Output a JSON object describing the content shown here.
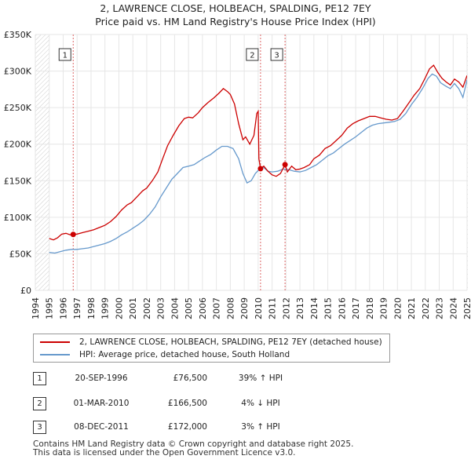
{
  "title": "2, LAWRENCE CLOSE, HOLBEACH, SPALDING, PE12 7EY",
  "subtitle": "Price paid vs. HM Land Registry's House Price Index (HPI)",
  "chart_data": {
    "type": "line",
    "xlim": [
      1994,
      2025
    ],
    "ylim": [
      0,
      350000
    ],
    "y_ticks": [
      {
        "value": 0,
        "label": "£0"
      },
      {
        "value": 50000,
        "label": "£50K"
      },
      {
        "value": 100000,
        "label": "£100K"
      },
      {
        "value": 150000,
        "label": "£150K"
      },
      {
        "value": 200000,
        "label": "£200K"
      },
      {
        "value": 250000,
        "label": "£250K"
      },
      {
        "value": 300000,
        "label": "£300K"
      },
      {
        "value": 350000,
        "label": "£350K"
      }
    ],
    "x_ticks": [
      "1994",
      "1995",
      "1996",
      "1997",
      "1998",
      "1999",
      "2000",
      "2001",
      "2002",
      "2003",
      "2004",
      "2005",
      "2006",
      "2007",
      "2008",
      "2009",
      "2010",
      "2011",
      "2012",
      "2013",
      "2014",
      "2015",
      "2016",
      "2017",
      "2018",
      "2019",
      "2020",
      "2021",
      "2022",
      "2023",
      "2024",
      "2025"
    ],
    "hatched_regions": [
      [
        1994,
        1995
      ],
      [
        2025,
        2025.2
      ]
    ],
    "series": [
      {
        "name": "2, LAWRENCE CLOSE, HOLBEACH, SPALDING, PE12 7EY (detached house)",
        "color": "#cc0000",
        "points": [
          [
            1995.0,
            71000
          ],
          [
            1995.3,
            69000
          ],
          [
            1995.6,
            72000
          ],
          [
            1995.9,
            77000
          ],
          [
            1996.2,
            78000
          ],
          [
            1996.5,
            76000
          ],
          [
            1996.72,
            76500
          ],
          [
            1997.0,
            77000
          ],
          [
            1997.4,
            79000
          ],
          [
            1997.8,
            81000
          ],
          [
            1998.2,
            83000
          ],
          [
            1998.6,
            86000
          ],
          [
            1999.0,
            89000
          ],
          [
            1999.4,
            94000
          ],
          [
            1999.8,
            101000
          ],
          [
            2000.2,
            110000
          ],
          [
            2000.6,
            117000
          ],
          [
            2000.9,
            120000
          ],
          [
            2001.3,
            128000
          ],
          [
            2001.7,
            136000
          ],
          [
            2002.0,
            140000
          ],
          [
            2002.4,
            150000
          ],
          [
            2002.8,
            162000
          ],
          [
            2003.1,
            178000
          ],
          [
            2003.5,
            198000
          ],
          [
            2003.9,
            212000
          ],
          [
            2004.3,
            225000
          ],
          [
            2004.7,
            235000
          ],
          [
            2005.0,
            237000
          ],
          [
            2005.3,
            236000
          ],
          [
            2005.7,
            243000
          ],
          [
            2006.0,
            250000
          ],
          [
            2006.4,
            257000
          ],
          [
            2006.8,
            263000
          ],
          [
            2007.2,
            270000
          ],
          [
            2007.5,
            276000
          ],
          [
            2007.8,
            272000
          ],
          [
            2008.0,
            268000
          ],
          [
            2008.3,
            255000
          ],
          [
            2008.6,
            228000
          ],
          [
            2008.9,
            206000
          ],
          [
            2009.1,
            210000
          ],
          [
            2009.4,
            200000
          ],
          [
            2009.7,
            212000
          ],
          [
            2009.9,
            242000
          ],
          [
            2010.0,
            245000
          ],
          [
            2010.05,
            180000
          ],
          [
            2010.17,
            166500
          ],
          [
            2010.4,
            170000
          ],
          [
            2010.7,
            163000
          ],
          [
            2011.0,
            158000
          ],
          [
            2011.3,
            156000
          ],
          [
            2011.6,
            160000
          ],
          [
            2011.93,
            172000
          ],
          [
            2012.1,
            162000
          ],
          [
            2012.4,
            170000
          ],
          [
            2012.7,
            165000
          ],
          [
            2013.0,
            166000
          ],
          [
            2013.3,
            168000
          ],
          [
            2013.7,
            172000
          ],
          [
            2014.0,
            180000
          ],
          [
            2014.4,
            185000
          ],
          [
            2014.8,
            194000
          ],
          [
            2015.2,
            198000
          ],
          [
            2015.6,
            205000
          ],
          [
            2016.0,
            212000
          ],
          [
            2016.4,
            222000
          ],
          [
            2016.8,
            228000
          ],
          [
            2017.2,
            232000
          ],
          [
            2017.6,
            235000
          ],
          [
            2018.0,
            238000
          ],
          [
            2018.4,
            238000
          ],
          [
            2018.8,
            236000
          ],
          [
            2019.2,
            234000
          ],
          [
            2019.6,
            233000
          ],
          [
            2020.0,
            235000
          ],
          [
            2020.4,
            245000
          ],
          [
            2020.8,
            256000
          ],
          [
            2021.2,
            267000
          ],
          [
            2021.6,
            276000
          ],
          [
            2022.0,
            291000
          ],
          [
            2022.3,
            303000
          ],
          [
            2022.6,
            308000
          ],
          [
            2022.9,
            298000
          ],
          [
            2023.2,
            290000
          ],
          [
            2023.5,
            285000
          ],
          [
            2023.8,
            281000
          ],
          [
            2024.1,
            289000
          ],
          [
            2024.4,
            285000
          ],
          [
            2024.7,
            278000
          ],
          [
            2025.0,
            294000
          ]
        ]
      },
      {
        "name": "HPI: Average price, detached house, South Holland",
        "color": "#6699cc",
        "points": [
          [
            1995.0,
            52000
          ],
          [
            1995.4,
            51000
          ],
          [
            1995.8,
            53000
          ],
          [
            1996.2,
            55000
          ],
          [
            1996.6,
            56000
          ],
          [
            1997.0,
            56000
          ],
          [
            1997.4,
            57000
          ],
          [
            1997.8,
            58000
          ],
          [
            1998.2,
            60000
          ],
          [
            1998.6,
            62000
          ],
          [
            1999.0,
            64000
          ],
          [
            1999.4,
            67000
          ],
          [
            1999.8,
            71000
          ],
          [
            2000.2,
            76000
          ],
          [
            2000.6,
            80000
          ],
          [
            2001.0,
            85000
          ],
          [
            2001.4,
            90000
          ],
          [
            2001.8,
            96000
          ],
          [
            2002.2,
            104000
          ],
          [
            2002.6,
            114000
          ],
          [
            2003.0,
            128000
          ],
          [
            2003.4,
            140000
          ],
          [
            2003.8,
            152000
          ],
          [
            2004.2,
            160000
          ],
          [
            2004.6,
            168000
          ],
          [
            2005.0,
            170000
          ],
          [
            2005.4,
            172000
          ],
          [
            2005.8,
            177000
          ],
          [
            2006.2,
            182000
          ],
          [
            2006.6,
            186000
          ],
          [
            2007.0,
            192000
          ],
          [
            2007.4,
            197000
          ],
          [
            2007.8,
            197000
          ],
          [
            2008.2,
            194000
          ],
          [
            2008.6,
            180000
          ],
          [
            2008.9,
            160000
          ],
          [
            2009.2,
            147000
          ],
          [
            2009.5,
            150000
          ],
          [
            2009.8,
            160000
          ],
          [
            2010.1,
            166000
          ],
          [
            2010.4,
            168000
          ],
          [
            2010.7,
            163000
          ],
          [
            2011.0,
            162000
          ],
          [
            2011.4,
            163000
          ],
          [
            2011.8,
            166000
          ],
          [
            2012.2,
            165000
          ],
          [
            2012.6,
            163000
          ],
          [
            2013.0,
            162000
          ],
          [
            2013.4,
            164000
          ],
          [
            2013.8,
            168000
          ],
          [
            2014.2,
            172000
          ],
          [
            2014.6,
            178000
          ],
          [
            2015.0,
            184000
          ],
          [
            2015.4,
            188000
          ],
          [
            2015.8,
            194000
          ],
          [
            2016.2,
            200000
          ],
          [
            2016.6,
            205000
          ],
          [
            2017.0,
            210000
          ],
          [
            2017.4,
            216000
          ],
          [
            2017.8,
            222000
          ],
          [
            2018.2,
            226000
          ],
          [
            2018.6,
            228000
          ],
          [
            2019.0,
            229000
          ],
          [
            2019.4,
            230000
          ],
          [
            2019.8,
            231000
          ],
          [
            2020.2,
            234000
          ],
          [
            2020.6,
            242000
          ],
          [
            2021.0,
            254000
          ],
          [
            2021.4,
            264000
          ],
          [
            2021.8,
            276000
          ],
          [
            2022.2,
            290000
          ],
          [
            2022.5,
            296000
          ],
          [
            2022.8,
            293000
          ],
          [
            2023.1,
            284000
          ],
          [
            2023.5,
            279000
          ],
          [
            2023.8,
            276000
          ],
          [
            2024.1,
            283000
          ],
          [
            2024.4,
            276000
          ],
          [
            2024.7,
            264000
          ],
          [
            2025.0,
            288000
          ]
        ]
      }
    ],
    "sales": [
      {
        "id": "1",
        "x": 1996.72,
        "y": 76500
      },
      {
        "id": "2",
        "x": 2010.17,
        "y": 166500
      },
      {
        "id": "3",
        "x": 2011.93,
        "y": 172000
      }
    ]
  },
  "legend": {
    "property_label": "2, LAWRENCE CLOSE, HOLBEACH, SPALDING, PE12 7EY (detached house)",
    "hpi_label": "HPI: Average price, detached house, South Holland"
  },
  "transactions": [
    {
      "id": "1",
      "date": "20-SEP-1996",
      "price": "£76,500",
      "hpi": "39% ↑ HPI"
    },
    {
      "id": "2",
      "date": "01-MAR-2010",
      "price": "£166,500",
      "hpi": "4% ↓ HPI"
    },
    {
      "id": "3",
      "date": "08-DEC-2011",
      "price": "£172,000",
      "hpi": "3% ↑ HPI"
    }
  ],
  "footer": {
    "line1": "Contains HM Land Registry data © Crown copyright and database right 2025.",
    "line2": "This data is licensed under the Open Government Licence v3.0."
  }
}
